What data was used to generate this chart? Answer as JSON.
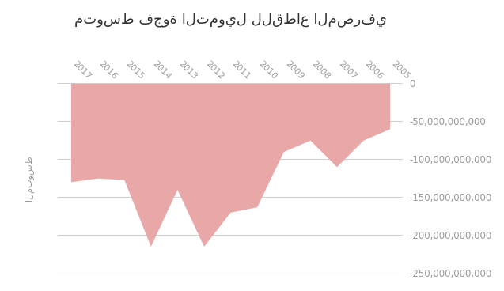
{
  "title": "متوسط فجوة التمويل للقطاع المصرفي",
  "ylabel": "المتوسط",
  "years": [
    2017,
    2016,
    2015,
    2014,
    2013,
    2012,
    2011,
    2010,
    2009,
    2008,
    2007,
    2006,
    2005
  ],
  "values": [
    -130000000000,
    -125000000000,
    -127000000000,
    -215000000000,
    -140000000000,
    -215000000000,
    -170000000000,
    -163000000000,
    -90000000000,
    -75000000000,
    -110000000000,
    -75000000000,
    -60000000000
  ],
  "fill_color": "#e8a8a8",
  "ylim_min": -250000000000,
  "ylim_max": 0,
  "yticks": [
    0,
    -50000000000,
    -100000000000,
    -150000000000,
    -200000000000,
    -250000000000
  ],
  "background_color": "#ffffff",
  "grid_color": "#d0d0d0",
  "tick_color": "#999999",
  "title_fontsize": 13,
  "xlabel_rotation": -45,
  "xlabel_fontsize": 8
}
